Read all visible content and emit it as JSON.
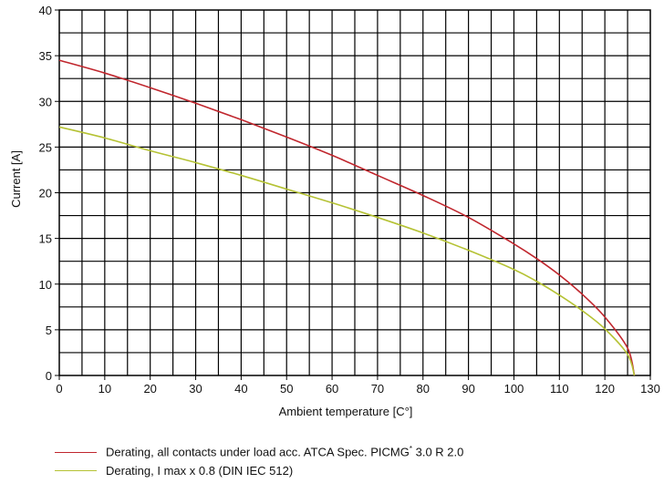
{
  "chart_data": {
    "type": "line",
    "xlabel": "Ambient temperature [C°]",
    "ylabel": "Current [A]",
    "xlim": [
      0,
      130
    ],
    "ylim": [
      0,
      40
    ],
    "xticks": [
      0,
      10,
      20,
      30,
      40,
      50,
      60,
      70,
      80,
      90,
      100,
      110,
      120,
      130
    ],
    "yticks": [
      0,
      5,
      10,
      15,
      20,
      25,
      30,
      35,
      40
    ],
    "grid": true,
    "legend_position": "bottom",
    "series": [
      {
        "name": "Derating, all contacts under load acc. ATCA Spec. PICMG",
        "name_superscript": "*",
        "name_suffix": " 3.0 R 2.0",
        "color": "#c0262d",
        "x": [
          0,
          10,
          20,
          30,
          40,
          50,
          60,
          70,
          80,
          90,
          100,
          105,
          110,
          115,
          120,
          125,
          126.5
        ],
        "y": [
          34.5,
          33.1,
          31.5,
          29.8,
          28.0,
          26.1,
          24.1,
          21.9,
          19.7,
          17.3,
          14.4,
          12.8,
          11.0,
          8.9,
          6.4,
          3.0,
          0
        ]
      },
      {
        "name": "Derating, I max x 0.8 (DIN IEC 512)",
        "color": "#b5c234",
        "x": [
          0,
          10,
          20,
          30,
          40,
          50,
          60,
          70,
          80,
          90,
          100,
          105,
          110,
          115,
          120,
          125,
          126.5
        ],
        "y": [
          27.2,
          26.0,
          24.6,
          23.3,
          21.9,
          20.4,
          18.9,
          17.3,
          15.6,
          13.7,
          11.6,
          10.3,
          8.8,
          7.1,
          5.1,
          2.3,
          0
        ]
      }
    ]
  }
}
